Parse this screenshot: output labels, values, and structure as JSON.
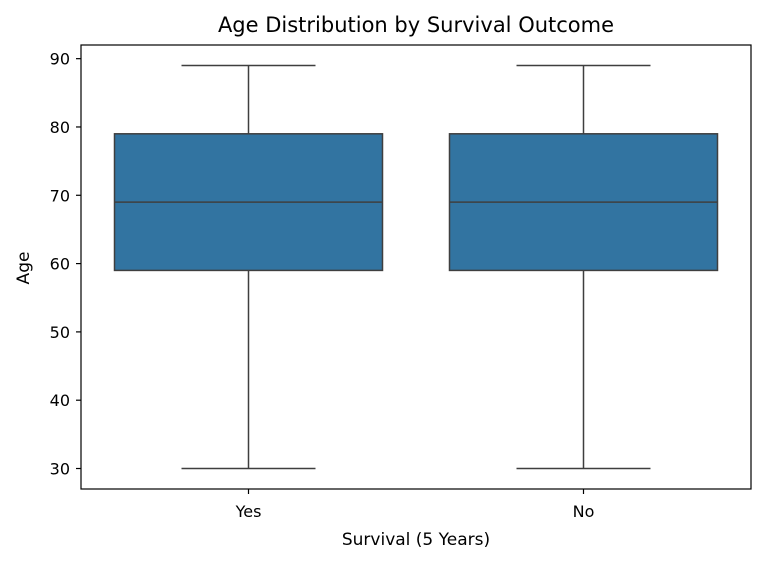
{
  "chart_data": {
    "type": "box",
    "title": "Age Distribution by Survival Outcome",
    "xlabel": "Survival (5 Years)",
    "ylabel": "Age",
    "categories": [
      "Yes",
      "No"
    ],
    "boxes": [
      {
        "category": "Yes",
        "whisker_low": 30,
        "q1": 59,
        "median": 69,
        "q3": 79,
        "whisker_high": 89
      },
      {
        "category": "No",
        "whisker_low": 30,
        "q1": 59,
        "median": 69,
        "q3": 79,
        "whisker_high": 89
      }
    ],
    "ylim": [
      27,
      92
    ],
    "yticks": [
      30,
      40,
      50,
      60,
      70,
      80,
      90
    ],
    "grid": false,
    "colors": {
      "box_fill": "#3274a1",
      "line": "#3f3f3f",
      "axis": "#000000"
    }
  }
}
